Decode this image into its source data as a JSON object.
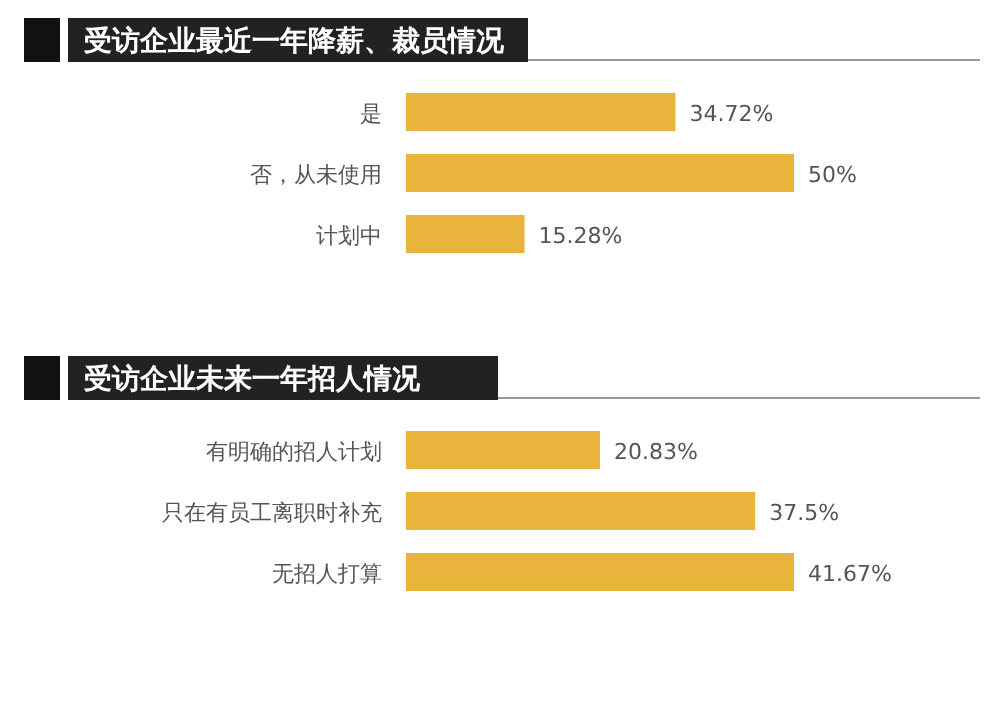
{
  "chart_data": [
    {
      "type": "bar",
      "orientation": "horizontal",
      "title": "受访企业最近一年降薪、裁员情况",
      "categories": [
        "是",
        "否，从未使用",
        "计划中"
      ],
      "values": [
        34.72,
        50,
        15.28
      ],
      "value_labels": [
        "34.72%",
        "50%",
        "15.28%"
      ],
      "color": "#e8b43c"
    },
    {
      "type": "bar",
      "orientation": "horizontal",
      "title": "受访企业未来一年招人情况",
      "categories": [
        "有明确的招人计划",
        "只在有员工离职时补充",
        "无招人打算"
      ],
      "values": [
        20.83,
        37.5,
        41.67
      ],
      "value_labels": [
        "20.83%",
        "37.5%",
        "41.67%"
      ],
      "color": "#e8b43c"
    }
  ]
}
